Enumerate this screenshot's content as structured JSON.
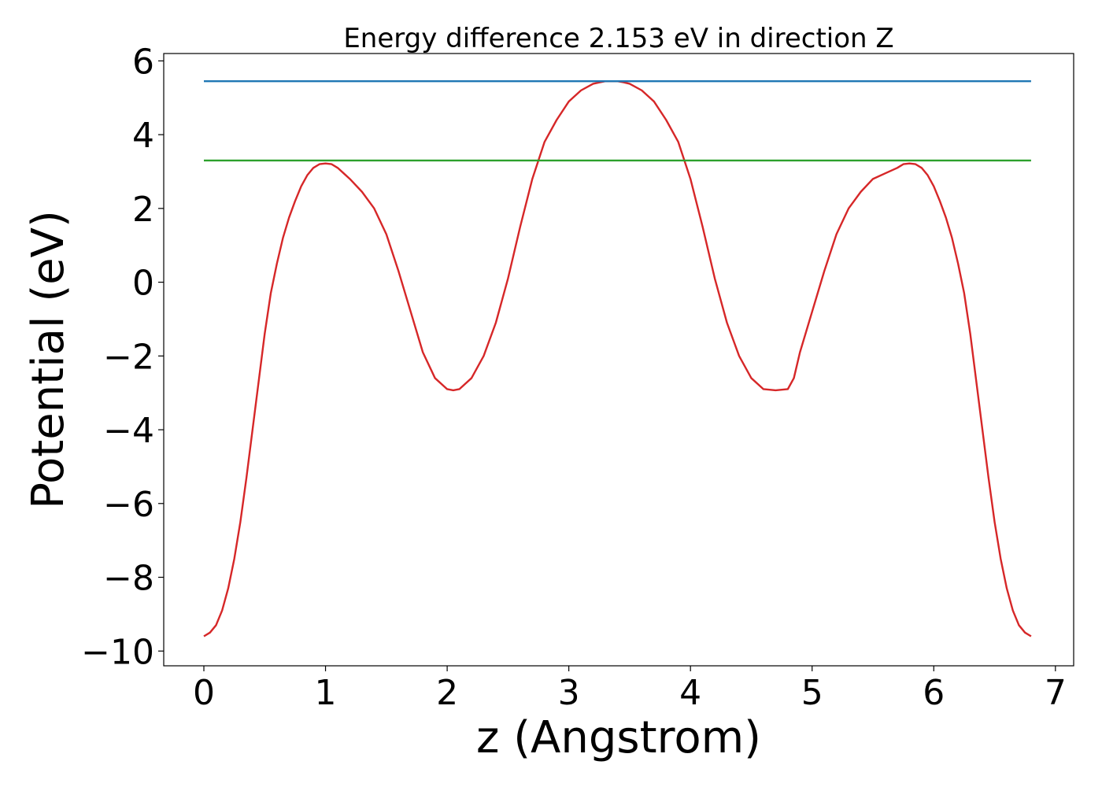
{
  "chart_data": {
    "type": "line",
    "title": "Energy difference 2.153 eV in direction Z",
    "xlabel": "z (Angstrom)",
    "ylabel": "Potential (eV)",
    "xlim": [
      -0.33,
      7.15
    ],
    "ylim": [
      -10.4,
      6.2
    ],
    "x_ticks": [
      0,
      1,
      2,
      3,
      4,
      5,
      6,
      7
    ],
    "y_ticks": [
      -10,
      -8,
      -6,
      -4,
      -2,
      0,
      2,
      4,
      6
    ],
    "x_tick_labels": [
      "0",
      "1",
      "2",
      "3",
      "4",
      "5",
      "6",
      "7"
    ],
    "y_tick_labels": [
      "−10",
      "−8",
      "−6",
      "−4",
      "−2",
      "0",
      "2",
      "4",
      "6"
    ],
    "grid": false,
    "series": [
      {
        "color": "#d62728",
        "x": [
          0.0,
          0.05,
          0.1,
          0.15,
          0.2,
          0.25,
          0.3,
          0.35,
          0.4,
          0.45,
          0.5,
          0.55,
          0.6,
          0.65,
          0.7,
          0.75,
          0.8,
          0.85,
          0.9,
          0.95,
          1.0,
          1.05,
          1.1,
          1.15,
          1.2,
          1.3,
          1.4,
          1.5,
          1.6,
          1.7,
          1.8,
          1.9,
          2.0,
          2.05,
          2.1,
          2.2,
          2.3,
          2.4,
          2.5,
          2.6,
          2.7,
          2.8,
          2.9,
          3.0,
          3.1,
          3.2,
          3.3,
          3.4,
          3.45,
          3.5,
          3.6,
          3.7,
          3.8,
          3.9,
          4.0,
          4.1,
          4.2,
          4.3,
          4.4,
          4.5,
          4.6,
          4.7,
          4.8,
          4.85,
          4.9,
          5.0,
          5.1,
          5.2,
          5.3,
          5.4,
          5.5,
          5.6,
          5.7,
          5.75,
          5.8,
          5.85,
          5.9,
          5.95,
          6.0,
          6.05,
          6.1,
          6.15,
          6.2,
          6.25,
          6.3,
          6.35,
          6.4,
          6.45,
          6.5,
          6.55,
          6.6,
          6.65,
          6.7,
          6.75,
          6.8
        ],
        "y": [
          -9.6,
          -9.5,
          -9.3,
          -8.9,
          -8.3,
          -7.5,
          -6.5,
          -5.3,
          -4.0,
          -2.7,
          -1.4,
          -0.3,
          0.5,
          1.2,
          1.75,
          2.2,
          2.6,
          2.9,
          3.1,
          3.2,
          3.22,
          3.2,
          3.1,
          2.95,
          2.8,
          2.45,
          2.0,
          1.3,
          0.3,
          -0.8,
          -1.9,
          -2.6,
          -2.9,
          -2.93,
          -2.9,
          -2.6,
          -2.0,
          -1.1,
          0.1,
          1.5,
          2.8,
          3.8,
          4.4,
          4.9,
          5.2,
          5.38,
          5.45,
          5.45,
          5.42,
          5.38,
          5.2,
          4.9,
          4.4,
          3.8,
          2.8,
          1.5,
          0.1,
          -1.1,
          -2.0,
          -2.6,
          -2.9,
          -2.93,
          -2.9,
          -2.6,
          -1.9,
          -0.8,
          0.3,
          1.3,
          2.0,
          2.45,
          2.8,
          2.95,
          3.1,
          3.2,
          3.22,
          3.2,
          3.1,
          2.9,
          2.6,
          2.2,
          1.75,
          1.2,
          0.5,
          -0.3,
          -1.4,
          -2.7,
          -4.0,
          -5.3,
          -6.5,
          -7.5,
          -8.3,
          -8.9,
          -9.3,
          -9.5,
          -9.6
        ]
      },
      {
        "color": "#1f77b4",
        "x": [
          0.0,
          6.8
        ],
        "y": [
          5.45,
          5.45
        ]
      },
      {
        "color": "#2ca02c",
        "x": [
          0.0,
          6.8
        ],
        "y": [
          3.3,
          3.3
        ]
      }
    ]
  }
}
